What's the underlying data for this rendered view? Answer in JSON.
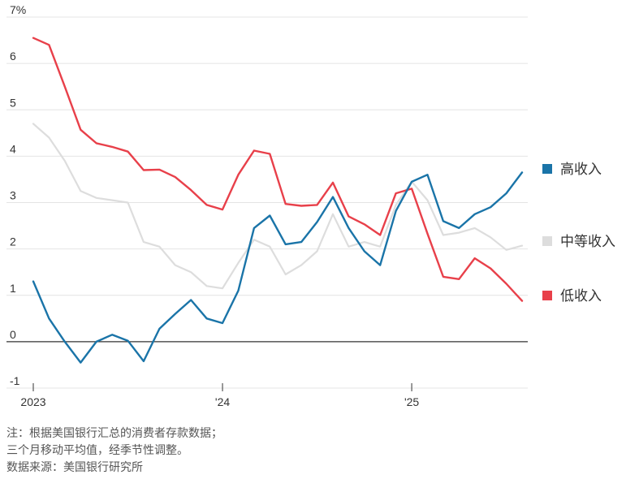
{
  "chart_data": {
    "type": "line",
    "title": "",
    "ylabel": "",
    "xlabel": "",
    "ylim": [
      -1,
      7
    ],
    "y_ticks": [
      -1,
      0,
      1,
      2,
      3,
      4,
      5,
      6,
      7
    ],
    "y_tick_labels": [
      "-1",
      "0",
      "1",
      "2",
      "3",
      "4",
      "5",
      "6",
      "7%"
    ],
    "x_tick_labels": [
      {
        "label": "2023",
        "x": 0
      },
      {
        "label": "'24",
        "x": 12
      },
      {
        "label": "'25",
        "x": 24
      }
    ],
    "xlim": [
      0,
      31
    ],
    "grid": true,
    "legend_position": "right",
    "x": [
      0,
      1,
      2,
      3,
      4,
      5,
      6,
      7,
      8,
      9,
      10,
      11,
      12,
      13,
      14,
      15,
      16,
      17,
      18,
      19,
      20,
      21,
      22,
      23,
      24,
      25,
      26,
      27,
      28,
      29,
      30,
      31
    ],
    "series": [
      {
        "name": "高收入",
        "color": "#1a74a8",
        "values": [
          1.3,
          0.5,
          0.0,
          -0.45,
          0.0,
          0.15,
          0.02,
          -0.42,
          0.28,
          0.6,
          0.9,
          0.5,
          0.4,
          1.1,
          2.45,
          2.72,
          2.1,
          2.15,
          2.58,
          3.12,
          2.45,
          1.95,
          1.65,
          2.82,
          3.45,
          3.6,
          2.6,
          2.45,
          2.75,
          2.9,
          3.2,
          3.65
        ]
      },
      {
        "name": "中等收入",
        "color": "#dddddd",
        "values": [
          4.7,
          4.4,
          3.9,
          3.25,
          3.1,
          3.05,
          3.0,
          2.15,
          2.05,
          1.65,
          1.5,
          1.2,
          1.15,
          1.7,
          2.2,
          2.05,
          1.45,
          1.65,
          1.95,
          2.75,
          2.05,
          2.15,
          2.05,
          2.95,
          3.45,
          3.05,
          2.3,
          2.35,
          2.45,
          2.25,
          1.98,
          2.07
        ]
      },
      {
        "name": "低收入",
        "color": "#e8404a",
        "values": [
          6.55,
          6.4,
          5.5,
          4.57,
          4.28,
          4.2,
          4.1,
          3.7,
          3.71,
          3.55,
          3.27,
          2.95,
          2.85,
          3.6,
          4.12,
          4.05,
          2.97,
          2.93,
          2.95,
          3.43,
          2.7,
          2.53,
          2.3,
          3.2,
          3.3,
          2.33,
          1.4,
          1.35,
          1.8,
          1.58,
          1.25,
          0.88
        ]
      }
    ]
  },
  "notes": {
    "line1": "注：根据美国银行汇总的消费者存款数据；",
    "line2": "三个月移动平均值，经季节性调整。",
    "line3": "数据来源：美国银行研究所"
  }
}
